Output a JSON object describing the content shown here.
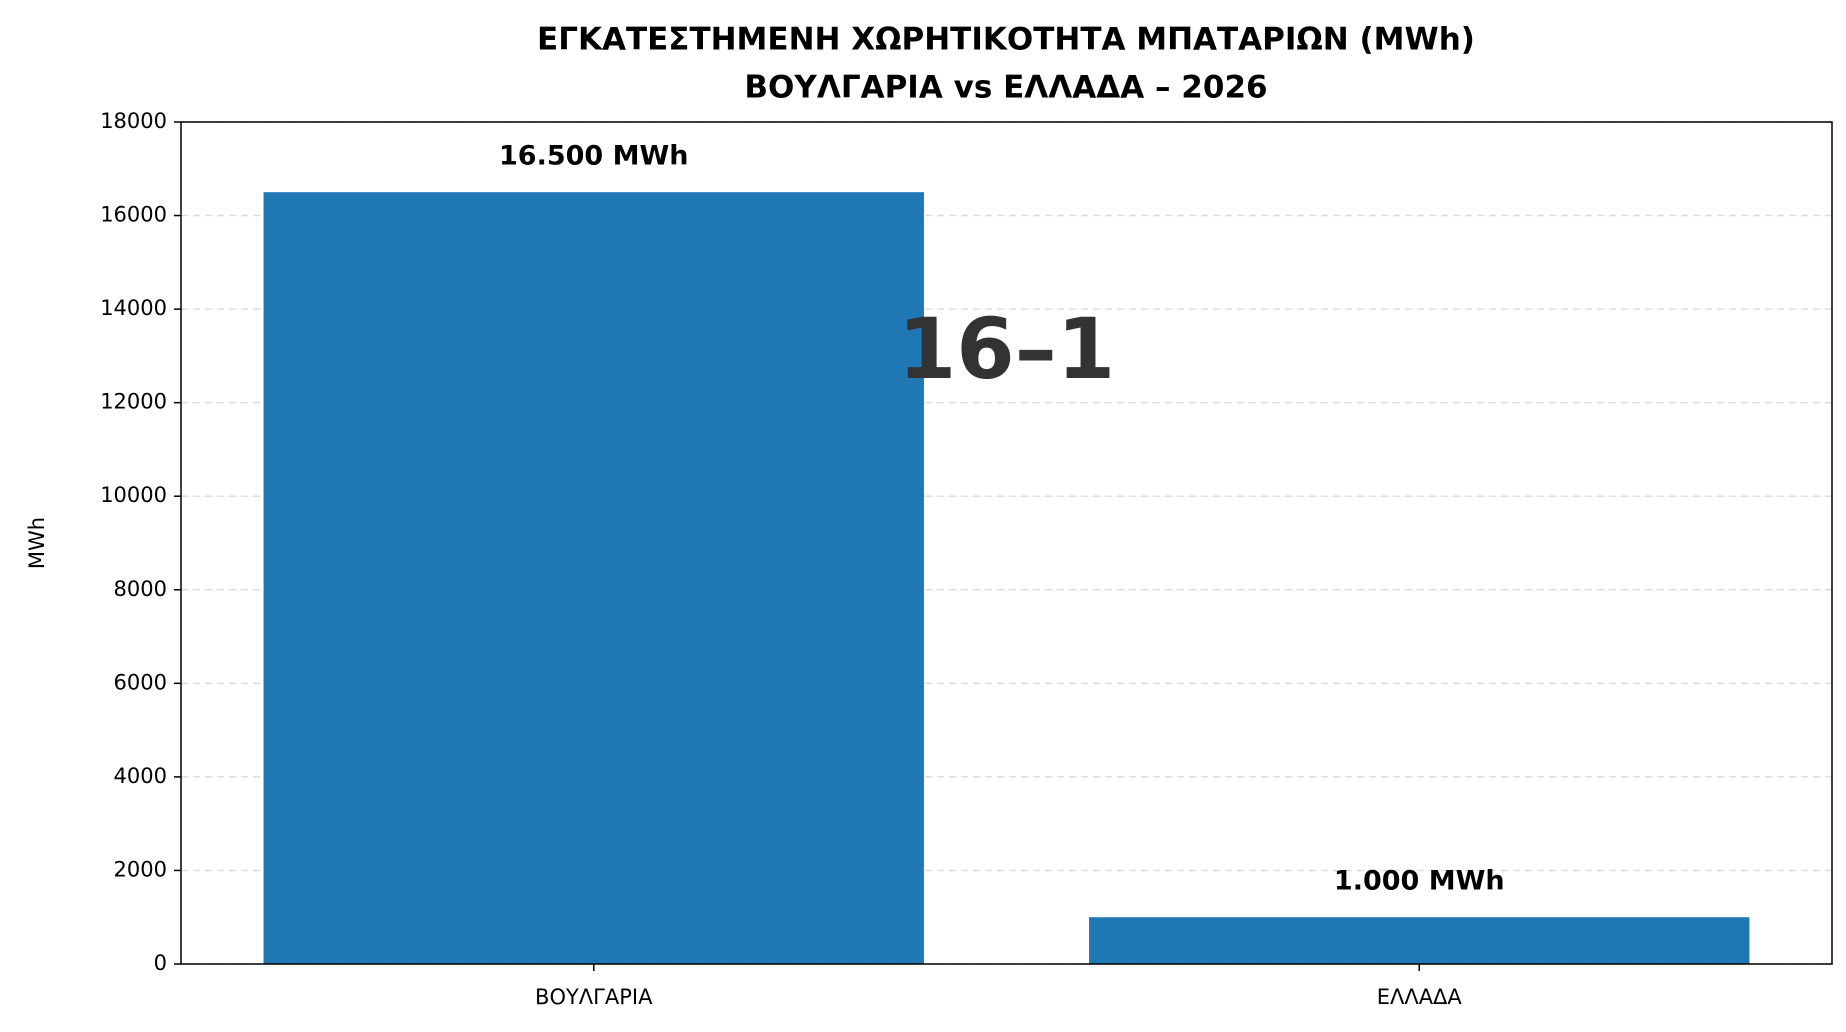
{
  "chart_data": {
    "type": "bar",
    "title": "ΕΓΚΑΤΕΣΤΗΜΕΝΗ ΧΩΡΗΤΙΚΟΤΗΤΑ ΜΠΑΤΑΡΙΩΝ (MWh)",
    "subtitle": "ΒΟΥΛΓΑΡΙΑ vs ΕΛΛΑΔΑ – 2026",
    "y_label": "MWh",
    "categories": [
      "ΒΟΥΛΓΑΡΙΑ",
      "ΕΛΛΑΔΑ"
    ],
    "values": [
      16500,
      1000
    ],
    "value_labels": [
      "16.500 MWh",
      "1.000 MWh"
    ],
    "color": "#1f77b4",
    "annotation": "16–1",
    "ylim": [
      0,
      18000
    ],
    "yticks": [
      0,
      2000,
      4000,
      6000,
      8000,
      10000,
      12000,
      14000,
      16000,
      18000
    ],
    "grid": true
  }
}
